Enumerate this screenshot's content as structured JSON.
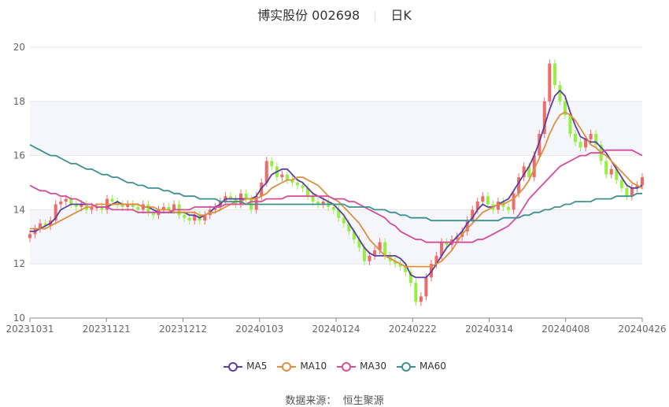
{
  "header": {
    "stock": "博实股份 002698",
    "period": "日K"
  },
  "source_text": "数据来源：  恒生聚源",
  "chart_data": {
    "type": "candlestick",
    "ylim": [
      10,
      20
    ],
    "yticks": [
      "20",
      "18",
      "16",
      "14",
      "12",
      "10"
    ],
    "xtick_labels": [
      "20231031",
      "20231121",
      "20231212",
      "20240103",
      "20240124",
      "20240222",
      "20240314",
      "20240408",
      "20240426"
    ],
    "n_days": 120,
    "colors": {
      "up": "#ee6b6b",
      "down": "#97ee44",
      "grid": "#e6e6e6",
      "band": "#f4f6fb"
    },
    "candles_close": [
      13.1,
      13.3,
      13.5,
      13.4,
      13.6,
      14.2,
      14.3,
      14.4,
      14.2,
      14.1,
      14.2,
      14.0,
      14.1,
      14.1,
      14.0,
      14.4,
      14.3,
      14.2,
      14.1,
      14.2,
      14.1,
      14.0,
      14.2,
      13.9,
      13.8,
      14.0,
      14.1,
      14.0,
      14.2,
      13.8,
      13.7,
      13.6,
      13.8,
      13.6,
      13.8,
      14.0,
      14.1,
      14.3,
      14.5,
      14.4,
      14.2,
      14.6,
      14.4,
      14.0,
      14.5,
      15.0,
      15.8,
      15.6,
      15.2,
      15.3,
      15.1,
      15.0,
      14.9,
      14.8,
      14.5,
      14.3,
      14.2,
      14.3,
      14.1,
      14.0,
      13.7,
      13.5,
      13.2,
      12.9,
      12.6,
      12.1,
      12.3,
      12.5,
      12.8,
      12.3,
      12.1,
      12.0,
      11.9,
      11.7,
      11.3,
      10.6,
      10.8,
      11.5,
      12.0,
      12.3,
      12.8,
      12.7,
      12.9,
      13.0,
      13.2,
      13.6,
      14.0,
      14.3,
      14.5,
      14.2,
      14.0,
      14.3,
      14.1,
      14.0,
      14.6,
      15.2,
      15.6,
      15.2,
      16.0,
      16.8,
      18.0,
      19.4,
      18.6,
      18.0,
      17.5,
      16.8,
      16.5,
      16.3,
      16.6,
      16.8,
      16.4,
      15.8,
      15.3,
      15.5,
      15.1,
      14.8,
      14.5,
      14.8,
      14.9,
      15.2
    ],
    "ma5": [
      13.2,
      13.2,
      13.3,
      13.4,
      13.5,
      13.7,
      14.0,
      14.1,
      14.2,
      14.2,
      14.2,
      14.2,
      14.2,
      14.1,
      14.1,
      14.1,
      14.2,
      14.3,
      14.2,
      14.2,
      14.2,
      14.2,
      14.1,
      14.1,
      14.0,
      13.9,
      13.9,
      13.9,
      13.9,
      13.9,
      13.9,
      13.8,
      13.8,
      13.7,
      13.8,
      13.9,
      14.1,
      14.2,
      14.4,
      14.4,
      14.4,
      14.4,
      14.4,
      14.4,
      14.5,
      14.8,
      15.0,
      15.3,
      15.4,
      15.5,
      15.5,
      15.3,
      15.1,
      15.0,
      14.8,
      14.6,
      14.5,
      14.4,
      14.3,
      14.2,
      14.0,
      13.8,
      13.5,
      13.2,
      12.9,
      12.6,
      12.4,
      12.3,
      12.3,
      12.3,
      12.3,
      12.3,
      12.2,
      12.0,
      11.6,
      11.5,
      11.5,
      11.5,
      11.7,
      12.0,
      12.3,
      12.6,
      12.8,
      13.0,
      13.2,
      13.5,
      13.7,
      14.0,
      14.2,
      14.1,
      14.1,
      14.2,
      14.3,
      14.4,
      14.7,
      15.0,
      15.3,
      15.6,
      16.0,
      16.5,
      17.1,
      17.7,
      18.2,
      18.4,
      18.2,
      17.6,
      17.1,
      16.7,
      16.6,
      16.5,
      16.5,
      16.3,
      16.1,
      15.8,
      15.5,
      15.2,
      14.9,
      14.8,
      14.8,
      14.9
    ],
    "ma10": [
      13.3,
      13.3,
      13.3,
      13.3,
      13.4,
      13.5,
      13.6,
      13.7,
      13.8,
      13.9,
      14.0,
      14.1,
      14.1,
      14.2,
      14.2,
      14.2,
      14.2,
      14.2,
      14.2,
      14.2,
      14.2,
      14.2,
      14.1,
      14.1,
      14.1,
      14.0,
      14.0,
      14.0,
      13.9,
      13.9,
      13.9,
      13.9,
      13.9,
      13.8,
      13.8,
      13.9,
      13.9,
      14.0,
      14.1,
      14.2,
      14.3,
      14.3,
      14.4,
      14.4,
      14.4,
      14.5,
      14.6,
      14.8,
      14.9,
      15.0,
      15.1,
      15.1,
      15.2,
      15.2,
      15.1,
      15.0,
      14.9,
      14.7,
      14.5,
      14.4,
      14.3,
      14.1,
      13.9,
      13.7,
      13.5,
      13.2,
      12.9,
      12.7,
      12.5,
      12.3,
      12.2,
      12.1,
      12.0,
      11.9,
      11.9,
      11.9,
      11.9,
      11.9,
      11.9,
      12.0,
      12.1,
      12.3,
      12.5,
      12.8,
      13.1,
      13.3,
      13.5,
      13.7,
      13.9,
      14.0,
      14.1,
      14.2,
      14.2,
      14.3,
      14.4,
      14.6,
      14.8,
      15.1,
      15.5,
      15.9,
      16.3,
      16.8,
      17.2,
      17.5,
      17.6,
      17.5,
      17.3,
      17.0,
      16.7,
      16.4,
      16.3,
      16.1,
      16.0,
      15.8,
      15.6,
      15.4,
      15.2,
      15.0,
      14.9,
      14.8
    ],
    "ma30": [
      14.9,
      14.8,
      14.7,
      14.7,
      14.6,
      14.6,
      14.5,
      14.5,
      14.4,
      14.4,
      14.3,
      14.2,
      14.2,
      14.1,
      14.1,
      14.1,
      14.0,
      14.0,
      14.0,
      14.0,
      14.0,
      13.9,
      13.9,
      13.9,
      13.9,
      13.9,
      13.9,
      13.9,
      14.0,
      14.0,
      14.0,
      14.0,
      14.1,
      14.1,
      14.1,
      14.1,
      14.1,
      14.1,
      14.2,
      14.2,
      14.2,
      14.2,
      14.2,
      14.3,
      14.3,
      14.3,
      14.4,
      14.4,
      14.4,
      14.4,
      14.5,
      14.5,
      14.5,
      14.5,
      14.5,
      14.5,
      14.5,
      14.5,
      14.5,
      14.4,
      14.4,
      14.4,
      14.3,
      14.3,
      14.2,
      14.1,
      14.0,
      13.9,
      13.8,
      13.7,
      13.5,
      13.4,
      13.2,
      13.1,
      13.0,
      12.9,
      12.9,
      12.8,
      12.8,
      12.8,
      12.8,
      12.8,
      12.8,
      12.8,
      12.8,
      12.8,
      12.8,
      12.9,
      12.9,
      13.0,
      13.1,
      13.2,
      13.3,
      13.4,
      13.6,
      13.8,
      14.1,
      14.4,
      14.6,
      14.8,
      15.0,
      15.2,
      15.4,
      15.6,
      15.7,
      15.8,
      15.9,
      16.0,
      16.0,
      16.1,
      16.1,
      16.1,
      16.2,
      16.2,
      16.2,
      16.2,
      16.2,
      16.2,
      16.1,
      16.0
    ],
    "ma60": [
      16.4,
      16.3,
      16.2,
      16.1,
      16.0,
      16.0,
      15.9,
      15.8,
      15.7,
      15.7,
      15.6,
      15.5,
      15.5,
      15.4,
      15.3,
      15.3,
      15.2,
      15.2,
      15.1,
      15.0,
      15.0,
      14.9,
      14.9,
      14.8,
      14.8,
      14.8,
      14.7,
      14.7,
      14.6,
      14.6,
      14.5,
      14.5,
      14.5,
      14.4,
      14.4,
      14.4,
      14.4,
      14.3,
      14.3,
      14.3,
      14.3,
      14.3,
      14.2,
      14.2,
      14.2,
      14.2,
      14.2,
      14.2,
      14.2,
      14.2,
      14.2,
      14.2,
      14.2,
      14.2,
      14.2,
      14.2,
      14.2,
      14.2,
      14.2,
      14.2,
      14.2,
      14.2,
      14.1,
      14.1,
      14.1,
      14.1,
      14.1,
      14.0,
      14.0,
      14.0,
      13.9,
      13.9,
      13.8,
      13.8,
      13.7,
      13.7,
      13.7,
      13.7,
      13.6,
      13.6,
      13.6,
      13.6,
      13.6,
      13.6,
      13.6,
      13.6,
      13.6,
      13.6,
      13.6,
      13.6,
      13.6,
      13.6,
      13.7,
      13.7,
      13.7,
      13.7,
      13.8,
      13.8,
      13.9,
      13.9,
      14.0,
      14.0,
      14.1,
      14.1,
      14.2,
      14.2,
      14.3,
      14.3,
      14.3,
      14.3,
      14.4,
      14.4,
      14.4,
      14.4,
      14.5,
      14.5,
      14.5,
      14.5,
      14.6,
      14.6
    ],
    "series": [
      {
        "name": "MA5",
        "color": "#5b3e9e"
      },
      {
        "name": "MA10",
        "color": "#dd8f3f"
      },
      {
        "name": "MA30",
        "color": "#d44d99"
      },
      {
        "name": "MA60",
        "color": "#3e8f8f"
      }
    ]
  }
}
